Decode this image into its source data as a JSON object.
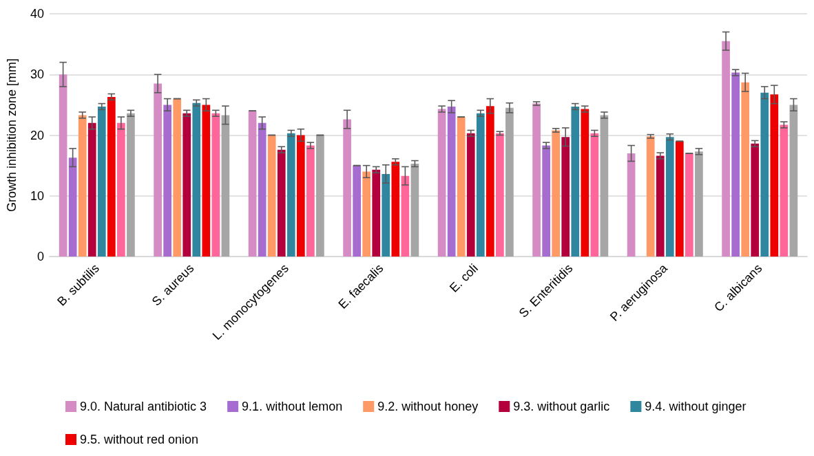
{
  "chart_data": {
    "type": "bar",
    "ylabel": "Growth inhibition zone [mm]",
    "categories": [
      "B. subtilis",
      "S. aureus",
      "L. monocytogenes",
      "E. faecalis",
      "E. coli",
      "S. Enteritidis",
      "P. aeruginosa",
      "C. albicans"
    ],
    "ylim": [
      0,
      40
    ],
    "yticks": [
      0,
      10,
      20,
      30,
      40
    ],
    "grid": "y",
    "legend": "bottom",
    "series": [
      {
        "name": "9.0. Natural antibiotic 3",
        "color": "#d58cc4",
        "values": [
          30,
          28.5,
          24,
          22.6,
          24.3,
          25.2,
          17,
          35.5
        ],
        "errors": [
          2,
          1.5,
          0,
          1.5,
          0.5,
          0.3,
          1.3,
          1.5
        ]
      },
      {
        "name": "9.1. without lemon",
        "color": "#a66cd0",
        "values": [
          16.3,
          25,
          22,
          15,
          24.7,
          18.3,
          null,
          30.3
        ],
        "errors": [
          1.5,
          1,
          1,
          0,
          1,
          0.5,
          null,
          0.5
        ]
      },
      {
        "name": "9.2. without honey",
        "color": "#ff9966",
        "values": [
          23.3,
          26,
          20,
          14,
          23,
          20.8,
          19.8,
          28.7
        ],
        "errors": [
          0.5,
          0,
          0,
          1,
          0,
          0.3,
          0.3,
          1.5
        ]
      },
      {
        "name": "9.3. without garlic",
        "color": "#b3003c",
        "values": [
          22,
          23.6,
          17.6,
          14.3,
          20.3,
          19.7,
          16.6,
          18.6
        ],
        "errors": [
          1,
          0.5,
          0.5,
          0.5,
          0.5,
          1.5,
          0.5,
          0.5
        ]
      },
      {
        "name": "9.4. without ginger",
        "color": "#2f869e",
        "values": [
          24.7,
          25.3,
          20.3,
          13.6,
          23.6,
          24.7,
          19.7,
          27
        ],
        "errors": [
          0.5,
          0.5,
          0.5,
          1.5,
          0.5,
          0.5,
          0.5,
          1
        ]
      },
      {
        "name": "9.5. without red onion",
        "color": "#ee0000",
        "values": [
          26.3,
          25,
          20,
          15.6,
          24.8,
          24.3,
          19,
          26.7
        ],
        "errors": [
          0.5,
          1,
          1,
          0.5,
          1.2,
          0.5,
          0,
          1.5
        ]
      },
      {
        "color": "#ff6699",
        "values": [
          22,
          23.6,
          18.3,
          13.3,
          20.3,
          20.3,
          17,
          21.7
        ],
        "errors": [
          1,
          0.5,
          0.5,
          1.5,
          0.3,
          0.5,
          0,
          0.5
        ]
      },
      {
        "color": "#a6a6a6",
        "values": [
          23.6,
          23.3,
          20,
          15.3,
          24.5,
          23.3,
          17.3,
          25
        ],
        "errors": [
          0.5,
          1.5,
          0,
          0.5,
          0.8,
          0.5,
          0.5,
          1
        ]
      }
    ]
  }
}
